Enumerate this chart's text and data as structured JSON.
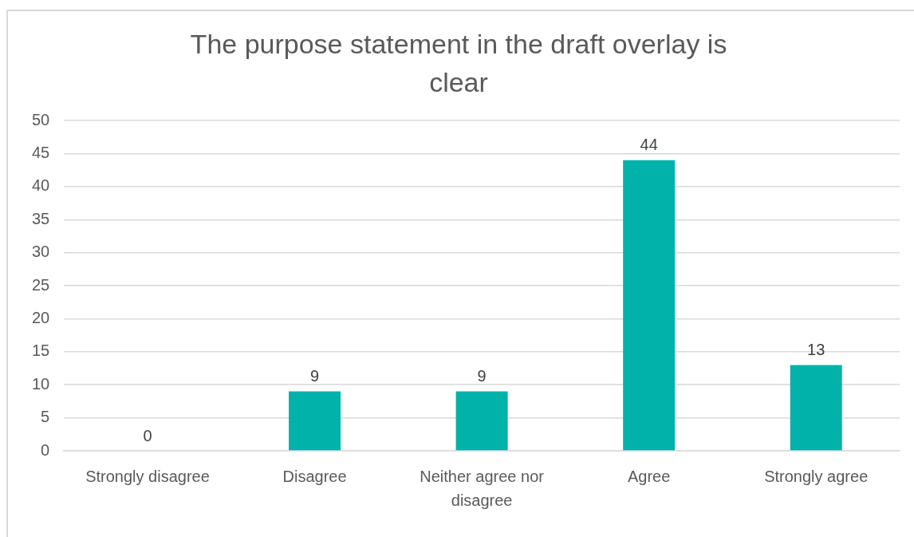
{
  "chart_data": {
    "type": "bar",
    "title": "The purpose statement in the draft overlay is clear",
    "categories": [
      "Strongly disagree",
      "Disagree",
      "Neither agree nor disagree",
      "Agree",
      "Strongly agree"
    ],
    "values": [
      0,
      9,
      9,
      44,
      13
    ],
    "color": "#00b2a9",
    "ylim": [
      0,
      50
    ],
    "yticks": [
      0,
      5,
      10,
      15,
      20,
      25,
      30,
      35,
      40,
      45,
      50
    ],
    "grid": "y",
    "data_labels": true
  }
}
